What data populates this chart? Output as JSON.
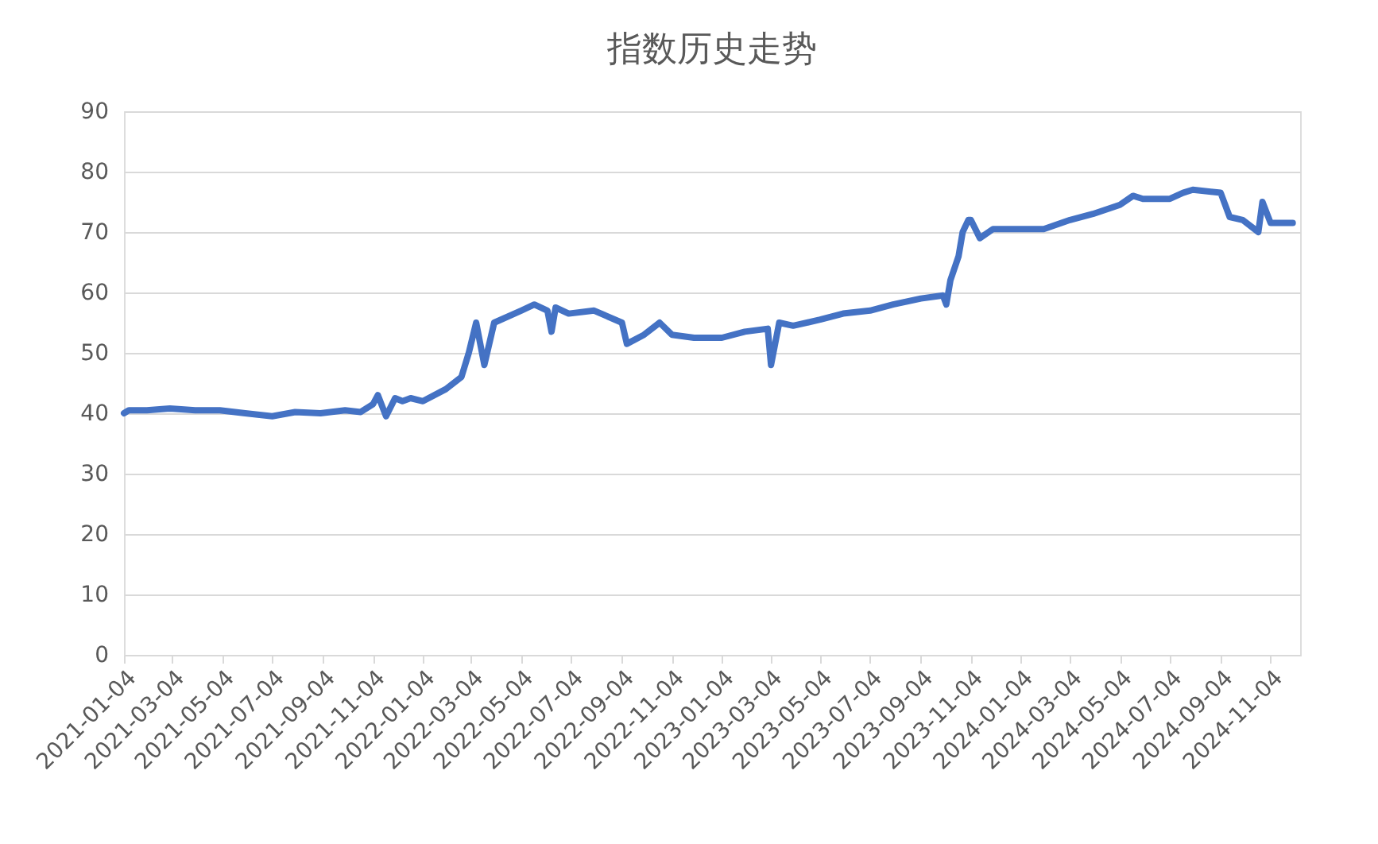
{
  "chart_data": {
    "type": "line",
    "title": "指数历史走势",
    "x": [
      "2021-01-04",
      "2021-01-10",
      "2021-02-01",
      "2021-03-01",
      "2021-04-01",
      "2021-05-01",
      "2021-06-01",
      "2021-07-04",
      "2021-08-01",
      "2021-09-01",
      "2021-10-01",
      "2021-10-20",
      "2021-11-04",
      "2021-11-10",
      "2021-11-20",
      "2021-12-01",
      "2021-12-10",
      "2021-12-20",
      "2022-01-04",
      "2022-02-01",
      "2022-02-20",
      "2022-03-01",
      "2022-03-10",
      "2022-03-20",
      "2022-04-01",
      "2022-05-04",
      "2022-05-20",
      "2022-06-05",
      "2022-06-10",
      "2022-06-15",
      "2022-07-01",
      "2022-08-01",
      "2022-09-04",
      "2022-09-10",
      "2022-10-01",
      "2022-10-20",
      "2022-11-04",
      "2022-12-01",
      "2023-01-04",
      "2023-02-01",
      "2023-03-01",
      "2023-03-05",
      "2023-03-15",
      "2023-04-01",
      "2023-05-04",
      "2023-06-01",
      "2023-07-04",
      "2023-08-01",
      "2023-09-04",
      "2023-10-01",
      "2023-10-05",
      "2023-10-10",
      "2023-10-20",
      "2023-10-25",
      "2023-11-01",
      "2023-11-04",
      "2023-11-15",
      "2023-12-01",
      "2024-01-04",
      "2024-02-01",
      "2024-03-04",
      "2024-04-01",
      "2024-05-04",
      "2024-05-20",
      "2024-06-01",
      "2024-07-04",
      "2024-07-20",
      "2024-08-01",
      "2024-09-04",
      "2024-09-15",
      "2024-10-01",
      "2024-10-20",
      "2024-10-25",
      "2024-11-04",
      "2024-12-01"
    ],
    "series": [
      {
        "color": "#4472c4",
        "values": [
          40,
          40.5,
          40.5,
          40.8,
          40.5,
          40.5,
          40,
          39.5,
          40.2,
          40,
          40.5,
          40.2,
          41.5,
          43,
          39.5,
          42.5,
          42,
          42.5,
          42,
          44,
          46,
          50,
          55,
          48,
          55,
          57,
          58,
          57,
          53.5,
          57.5,
          56.5,
          57,
          55,
          51.5,
          53,
          55,
          53,
          52.5,
          52.5,
          53.5,
          54,
          48,
          55,
          54.5,
          55.5,
          56.5,
          57,
          58,
          59,
          59.5,
          58,
          62,
          66,
          70,
          72,
          72,
          69,
          70.5,
          70.5,
          70.5,
          72,
          73,
          74.5,
          76,
          75.5,
          75.5,
          76.5,
          77,
          76.5,
          72.5,
          72,
          70,
          75,
          71.5,
          71.5
        ]
      }
    ],
    "xlim": [
      "2021-01-04",
      "2024-12-10"
    ],
    "xticks": [
      "2021-01-04",
      "2021-03-04",
      "2021-05-04",
      "2021-07-04",
      "2021-09-04",
      "2021-11-04",
      "2022-01-04",
      "2022-03-04",
      "2022-05-04",
      "2022-07-04",
      "2022-09-04",
      "2022-11-04",
      "2023-01-04",
      "2023-03-04",
      "2023-05-04",
      "2023-07-04",
      "2023-09-04",
      "2023-11-04",
      "2024-01-04",
      "2024-03-04",
      "2024-05-04",
      "2024-07-04",
      "2024-09-04",
      "2024-11-04"
    ],
    "ylim": [
      0,
      90
    ],
    "yticks": [
      0,
      10,
      20,
      30,
      40,
      50,
      60,
      70,
      80,
      90
    ],
    "grid": "y",
    "marker": "none",
    "line_style": "solid"
  }
}
